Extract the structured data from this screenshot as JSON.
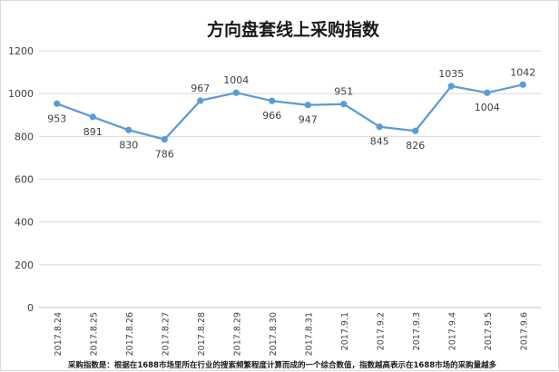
{
  "chart_data": {
    "type": "line",
    "title": "方向盘套线上采购指数",
    "xlabel": "",
    "ylabel": "",
    "categories": [
      "2017.8.24",
      "2017.8.25",
      "2017.8.26",
      "2017.8.27",
      "2017.8.28",
      "2017.8.29",
      "2017.8.30",
      "2017.8.31",
      "2017.9.1",
      "2017.9.2",
      "2017.9.3",
      "2017.9.4",
      "2017.9.5",
      "2017.9.6"
    ],
    "series": [
      {
        "values": [
          953,
          891,
          830,
          786,
          967,
          1004,
          966,
          947,
          951,
          845,
          826,
          1035,
          1004,
          1042
        ]
      }
    ],
    "ylim": [
      0,
      1200
    ],
    "yticks": [
      0,
      200,
      400,
      600,
      800,
      1000,
      1200
    ],
    "grid": true,
    "legend": "none",
    "line_color": "#5b9bd5",
    "footnote": "采购指数是：根据在1688市场里所在行业的搜索频繁程度计算而成的一个综合数值，指数越高表示在1688市场的采购量越多"
  }
}
